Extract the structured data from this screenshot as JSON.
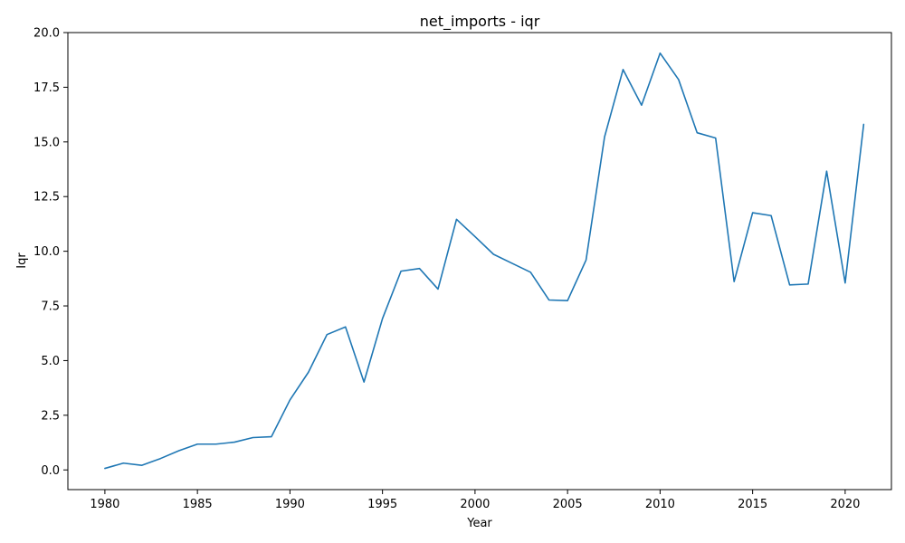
{
  "chart_data": {
    "type": "line",
    "title": "net_imports - iqr",
    "xlabel": "Year",
    "ylabel": "Iqr",
    "xlim": [
      1978,
      2022.5
    ],
    "ylim": [
      -0.9,
      20.0
    ],
    "xticks": [
      1980,
      1985,
      1990,
      1995,
      2000,
      2005,
      2010,
      2015,
      2020
    ],
    "yticks": [
      0.0,
      2.5,
      5.0,
      7.5,
      10.0,
      12.5,
      15.0,
      17.5,
      20.0
    ],
    "ytick_labels": [
      "0.0",
      "2.5",
      "5.0",
      "7.5",
      "10.0",
      "12.5",
      "15.0",
      "17.5",
      "20.0"
    ],
    "grid": false,
    "series": [
      {
        "color": "#1f77b4",
        "x": [
          1980,
          1981,
          1982,
          1983,
          1984,
          1985,
          1986,
          1987,
          1988,
          1989,
          1990,
          1991,
          1992,
          1993,
          1994,
          1995,
          1996,
          1997,
          1998,
          1999,
          2000,
          2001,
          2002,
          2003,
          2004,
          2005,
          2006,
          2007,
          2008,
          2009,
          2010,
          2011,
          2012,
          2013,
          2014,
          2015,
          2016,
          2017,
          2018,
          2019,
          2020,
          2021
        ],
        "y": [
          0.07,
          0.31,
          0.21,
          0.52,
          0.88,
          1.18,
          1.18,
          1.27,
          1.48,
          1.52,
          3.2,
          4.47,
          6.19,
          6.54,
          4.02,
          6.92,
          9.09,
          9.21,
          8.27,
          11.46,
          10.67,
          9.86,
          9.45,
          9.04,
          7.77,
          7.74,
          9.6,
          15.23,
          18.31,
          16.68,
          19.06,
          17.85,
          15.42,
          15.18,
          8.61,
          11.76,
          11.63,
          8.46,
          8.5,
          13.66,
          8.55,
          15.8
        ]
      }
    ]
  }
}
